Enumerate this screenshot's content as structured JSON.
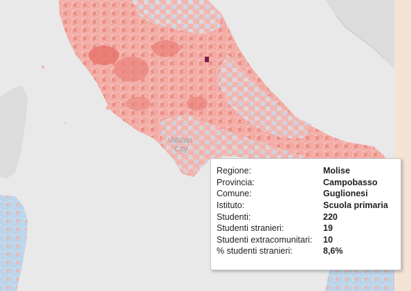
{
  "map": {
    "labels": [
      {
        "text": "Vatican",
        "name": "vatican-label"
      },
      {
        "text": "City",
        "name": "vatican-city-label"
      }
    ],
    "colors": {
      "sea": "#e9e9e9",
      "land": "#dcdcdc",
      "positive_light": "#f4b3ad",
      "positive_mid": "#ef9088",
      "positive_dark": "#e46a63",
      "negative_light": "#c9dcec",
      "negative_mid": "#a8c7e2",
      "highlight": "#7a1e4c",
      "side_panel": "#f4e4d6"
    }
  },
  "tooltip": {
    "rows": [
      {
        "label": "Regione:",
        "value": "Molise"
      },
      {
        "label": "Provincia:",
        "value": "Campobasso"
      },
      {
        "label": "Comune:",
        "value": "Guglionesi"
      },
      {
        "label": "Istituto:",
        "value": "Scuola primaria"
      },
      {
        "label": "Studenti:",
        "value": "220"
      },
      {
        "label": "Studenti stranieri:",
        "value": "19"
      },
      {
        "label": "Studenti extracomunitari:",
        "value": "10"
      },
      {
        "label": "% studenti stranieri:",
        "value": "8,6%"
      }
    ]
  }
}
